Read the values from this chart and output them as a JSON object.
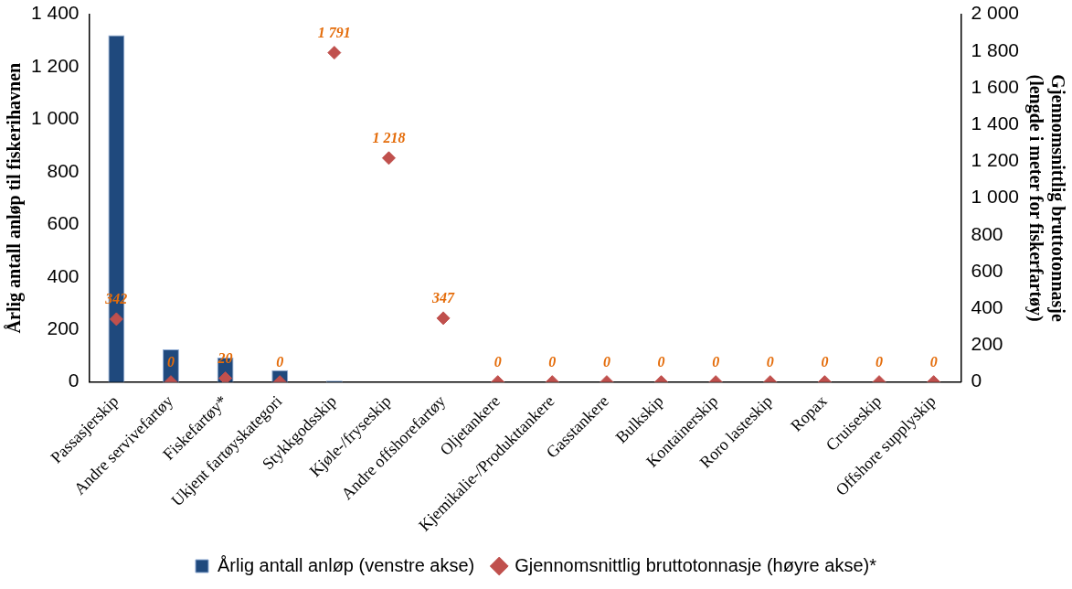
{
  "chart_data": {
    "type": "bar",
    "categories": [
      "Passasjerskip",
      "Andre servivefartøy",
      "Fiskefartøy*",
      "Ukjent fartøyskategori",
      "Stykkgodsskip",
      "Kjøle-/fryseskip",
      "Andre offshorefartøy",
      "Oljetankere",
      "Kjemikalie-/Produkttankere",
      "Gasstankere",
      "Bulkskip",
      "Kontainerskip",
      "Roro lasteskip",
      "Ropax",
      "Cruiseskip",
      "Offshore supplyskip"
    ],
    "series": [
      {
        "name": "Årlig antall anløp (venstre akse)",
        "color": "#1f497d",
        "values": [
          1320,
          124,
          93,
          45,
          5,
          0,
          0,
          0,
          0,
          0,
          0,
          0,
          0,
          0,
          0,
          0
        ]
      },
      {
        "name": "Gjennomsnittlig bruttotonnasje (høyre akse)*",
        "type": "scatter",
        "axis": "y2",
        "color": "#c0504d",
        "marker": "diamond",
        "values": [
          342,
          0,
          20,
          0,
          1791,
          1218,
          347,
          0,
          0,
          0,
          0,
          0,
          0,
          0,
          0,
          0
        ],
        "value_labels": [
          "342",
          "0",
          "20",
          "0",
          "1 791",
          "1 218",
          "347",
          "0",
          "0",
          "0",
          "0",
          "0",
          "0",
          "0",
          "0",
          "0"
        ]
      }
    ],
    "ylabel": "Årlig antall anløp til fiskerihavnen",
    "y2label": "Gjennomsnittlig bruttotonnasje (lengde i meter for fiskerfartøy)",
    "ylim": [
      0,
      1400
    ],
    "yticks": [
      0,
      200,
      400,
      600,
      800,
      {
        "value": 1000,
        "label": "1 000"
      },
      {
        "value": 1200,
        "label": "1 200"
      },
      {
        "value": 1400,
        "label": "1 400"
      }
    ],
    "y2lim": [
      0,
      2000
    ],
    "y2ticks": [
      0,
      200,
      400,
      600,
      800,
      {
        "value": 1000,
        "label": "1 000"
      },
      {
        "value": 1200,
        "label": "1 200"
      },
      {
        "value": 1400,
        "label": "1 400"
      },
      {
        "value": 1600,
        "label": "1 600"
      },
      {
        "value": 1800,
        "label": "1 800"
      },
      {
        "value": 2000,
        "label": "2 000"
      }
    ],
    "grid": false,
    "legend": "bottom"
  }
}
